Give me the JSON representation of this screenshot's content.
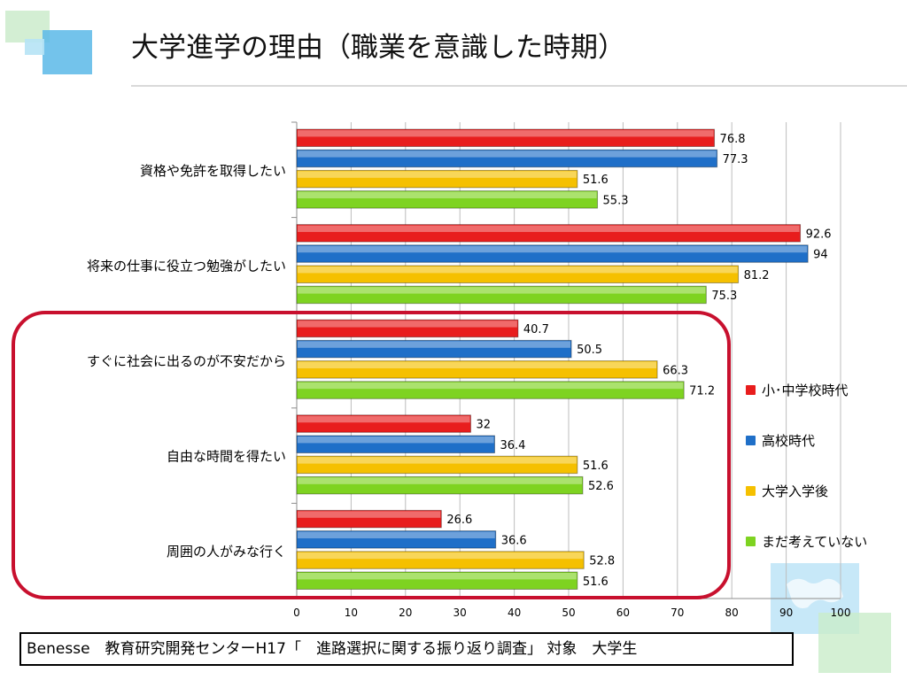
{
  "title": "大学進学の理由（職業を意識した時期）",
  "source_note": "Benesse　教育研究開発センターH17「　進路選択に関する振り返り調査」 対象　大学生",
  "chart_data": {
    "type": "bar",
    "orientation": "horizontal",
    "categories": [
      "資格や免許を取得したい",
      "将来の仕事に役立つ勉強がしたい",
      "すぐに社会に出るのが不安だから",
      "自由な時間を得たい",
      "周囲の人がみな行く"
    ],
    "series": [
      {
        "name": "小･中学校時代",
        "color": "#e81d1d",
        "values": [
          76.8,
          92.6,
          40.7,
          32,
          26.6
        ],
        "labels": [
          "76.8",
          "92.6",
          "40.7",
          "32",
          "26.6"
        ]
      },
      {
        "name": "高校時代",
        "color": "#1f6fc8",
        "values": [
          77.3,
          94,
          50.5,
          36.4,
          36.6
        ],
        "labels": [
          "77.3",
          "94",
          "50.5",
          "36.4",
          "36.6"
        ]
      },
      {
        "name": "大学入学後",
        "color": "#f5c000",
        "values": [
          51.6,
          81.2,
          66.3,
          51.6,
          52.8
        ],
        "labels": [
          "51.6",
          "81.2",
          "66.3",
          "51.6",
          "52.8"
        ]
      },
      {
        "name": "まだ考えていない",
        "color": "#7ed321",
        "values": [
          55.3,
          75.3,
          71.2,
          52.6,
          51.6
        ],
        "labels": [
          "55.3",
          "75.3",
          "71.2",
          "52.6",
          "51.6"
        ]
      }
    ],
    "xlim": [
      0,
      100
    ],
    "xticks": [
      "0",
      "10",
      "20",
      "30",
      "40",
      "50",
      "60",
      "70",
      "80",
      "90",
      "100"
    ],
    "grid": true,
    "legend_position": "right",
    "highlighted_categories": [
      "すぐに社会に出るのが不安だから",
      "自由な時間を得たい",
      "周囲の人がみな行く"
    ]
  }
}
